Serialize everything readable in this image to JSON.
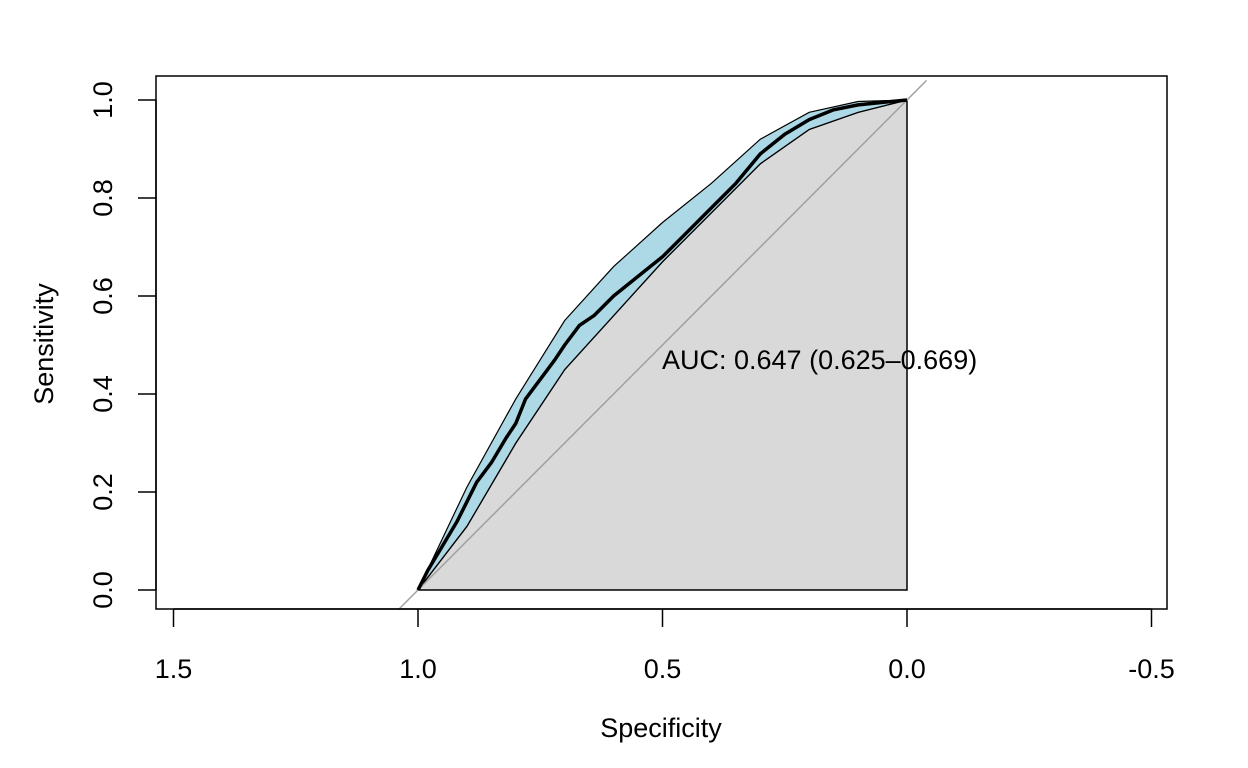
{
  "chart_data": {
    "type": "line",
    "xlabel": "Specificity",
    "ylabel": "Sensitivity",
    "xlim": [
      1.5,
      -0.5
    ],
    "ylim": [
      0,
      1
    ],
    "x_reversed": true,
    "x_ticks": [
      1.5,
      1.0,
      0.5,
      0.0,
      -0.5
    ],
    "x_tick_labels": [
      "1.5",
      "1.0",
      "0.5",
      "0.0",
      "-0.5"
    ],
    "y_ticks": [
      0.0,
      0.2,
      0.4,
      0.6,
      0.8,
      1.0
    ],
    "y_tick_labels": [
      "0.0",
      "0.2",
      "0.4",
      "0.6",
      "0.8",
      "1.0"
    ],
    "grid": false,
    "annotation": "AUC: 0.647 (0.625–0.669)",
    "diagonal": [
      [
        1.04,
        -0.04
      ],
      [
        -0.04,
        1.04
      ]
    ],
    "roc_curve": [
      [
        1.0,
        0.0
      ],
      [
        0.98,
        0.04
      ],
      [
        0.95,
        0.09
      ],
      [
        0.92,
        0.14
      ],
      [
        0.9,
        0.18
      ],
      [
        0.88,
        0.22
      ],
      [
        0.85,
        0.26
      ],
      [
        0.82,
        0.31
      ],
      [
        0.8,
        0.34
      ],
      [
        0.78,
        0.39
      ],
      [
        0.75,
        0.43
      ],
      [
        0.72,
        0.47
      ],
      [
        0.7,
        0.5
      ],
      [
        0.67,
        0.54
      ],
      [
        0.64,
        0.56
      ],
      [
        0.6,
        0.6
      ],
      [
        0.55,
        0.64
      ],
      [
        0.5,
        0.68
      ],
      [
        0.45,
        0.73
      ],
      [
        0.4,
        0.78
      ],
      [
        0.35,
        0.83
      ],
      [
        0.3,
        0.89
      ],
      [
        0.25,
        0.93
      ],
      [
        0.2,
        0.96
      ],
      [
        0.15,
        0.98
      ],
      [
        0.1,
        0.99
      ],
      [
        0.05,
        0.995
      ],
      [
        0.0,
        1.0
      ]
    ],
    "ci_upper": [
      [
        1.0,
        0.0
      ],
      [
        0.9,
        0.21
      ],
      [
        0.8,
        0.39
      ],
      [
        0.7,
        0.55
      ],
      [
        0.6,
        0.66
      ],
      [
        0.5,
        0.75
      ],
      [
        0.4,
        0.83
      ],
      [
        0.3,
        0.92
      ],
      [
        0.2,
        0.975
      ],
      [
        0.1,
        0.997
      ],
      [
        0.0,
        1.0
      ]
    ],
    "ci_lower": [
      [
        0.0,
        1.0
      ],
      [
        0.1,
        0.975
      ],
      [
        0.2,
        0.94
      ],
      [
        0.3,
        0.87
      ],
      [
        0.4,
        0.77
      ],
      [
        0.5,
        0.67
      ],
      [
        0.6,
        0.56
      ],
      [
        0.7,
        0.45
      ],
      [
        0.8,
        0.3
      ],
      [
        0.9,
        0.13
      ],
      [
        1.0,
        0.0
      ]
    ],
    "auc_polygon": [
      [
        1.0,
        0.0
      ],
      [
        0.9,
        0.13
      ],
      [
        0.8,
        0.3
      ],
      [
        0.7,
        0.45
      ],
      [
        0.6,
        0.56
      ],
      [
        0.5,
        0.67
      ],
      [
        0.4,
        0.77
      ],
      [
        0.3,
        0.87
      ],
      [
        0.2,
        0.94
      ],
      [
        0.1,
        0.975
      ],
      [
        0.0,
        1.0
      ],
      [
        0.0,
        0.0
      ]
    ],
    "colors": {
      "ci_fill": "#add8e6",
      "auc_fill": "#d9d9d9",
      "curve": "#000000",
      "diagonal": "#a0a0a0",
      "axis": "#000000"
    }
  }
}
